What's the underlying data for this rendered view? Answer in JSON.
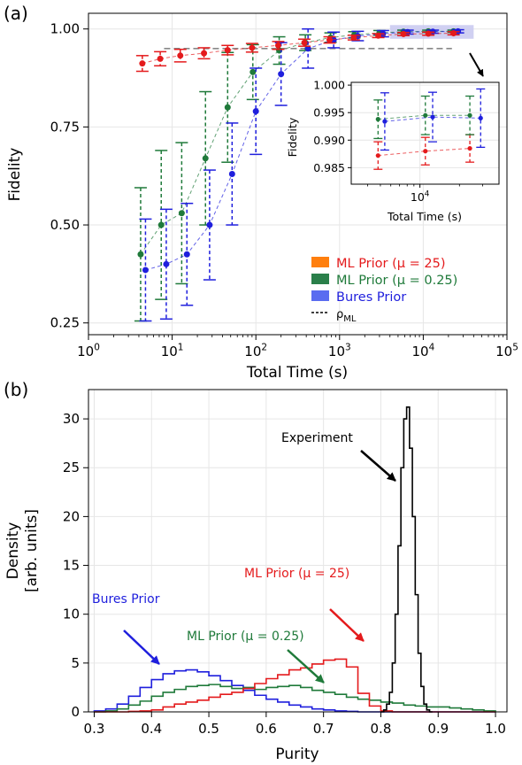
{
  "colors": {
    "ml25": "#e41a1c",
    "ml025": "#1f7a3a",
    "bures": "#1f1fdd",
    "experiment": "#000000",
    "ml25_legend": "#ff7f0e",
    "ml025_legend": "#2a7f4a",
    "bures_legend": "#5a6cf0",
    "ref_line": "#888888",
    "highlight": "#c8c8f0"
  },
  "chart_data": [
    {
      "panel_label": "(a)",
      "type": "line",
      "title": "",
      "xlabel": "Total Time (s)",
      "ylabel": "Fidelity",
      "xscale": "log",
      "xlim": [
        1,
        100000
      ],
      "ylim": [
        0.22,
        1.04
      ],
      "xticks": [
        1,
        10,
        100,
        1000,
        10000,
        100000
      ],
      "xticklabels": [
        [
          "10",
          "0"
        ],
        [
          "10",
          "1"
        ],
        [
          "10",
          "2"
        ],
        [
          "10",
          "3"
        ],
        [
          "10",
          "4"
        ],
        [
          "10",
          "5"
        ]
      ],
      "yticks": [
        0.25,
        0.5,
        0.75,
        1.0
      ],
      "yticklabels": [
        "0.25",
        "0.50",
        "0.75",
        "1.00"
      ],
      "grid": true,
      "legend_placement": "lower-right",
      "legend": [
        {
          "label": "ML Prior (μ = 25)",
          "color_key": "ml25_legend",
          "text_color_key": "ml25",
          "kind": "patch"
        },
        {
          "label": "ML Prior (μ = 0.25)",
          "color_key": "ml025_legend",
          "text_color_key": "ml025",
          "kind": "patch"
        },
        {
          "label": "Bures Prior",
          "color_key": "bures_legend",
          "text_color_key": "bures",
          "kind": "patch"
        },
        {
          "label": "ρ",
          "sub": "ML",
          "color_key": "experiment",
          "text_color_key": "experiment",
          "kind": "dash"
        }
      ],
      "reference_line": {
        "y": 0.95,
        "x_from": 8,
        "x_to": 22000
      },
      "highlight_region": {
        "x": [
          4000,
          40000
        ],
        "y": [
          0.975,
          1.01
        ]
      },
      "series": [
        {
          "name": "ML Prior (μ = 25)",
          "color_key": "ml25",
          "x": [
            4.4,
            7.2,
            12.5,
            24,
            46,
            90,
            185,
            380,
            760,
            1480,
            2900,
            5800,
            11500,
            23000
          ],
          "y": [
            0.912,
            0.924,
            0.932,
            0.938,
            0.946,
            0.952,
            0.958,
            0.965,
            0.972,
            0.978,
            0.983,
            0.987,
            0.988,
            0.989
          ],
          "err": [
            0.02,
            0.018,
            0.016,
            0.014,
            0.012,
            0.011,
            0.01,
            0.009,
            0.008,
            0.006,
            0.005,
            0.004,
            0.004,
            0.004
          ]
        },
        {
          "name": "ML Prior (μ = 0.25)",
          "color_key": "ml025",
          "x": [
            4.2,
            7.4,
            13,
            25,
            46,
            92,
            190,
            390,
            780,
            1500,
            3000,
            5800,
            11500,
            23000
          ],
          "y": [
            0.425,
            0.5,
            0.53,
            0.67,
            0.8,
            0.89,
            0.945,
            0.965,
            0.978,
            0.985,
            0.99,
            0.993,
            0.994,
            0.994
          ],
          "err": [
            0.17,
            0.19,
            0.18,
            0.17,
            0.14,
            0.07,
            0.035,
            0.02,
            0.012,
            0.008,
            0.006,
            0.004,
            0.003,
            0.003
          ]
        },
        {
          "name": "Bures Prior",
          "color_key": "bures",
          "x": [
            4.8,
            8.5,
            15,
            28,
            52,
            100,
            200,
            420,
            850,
            1650,
            3300,
            6500,
            13000,
            26000
          ],
          "y": [
            0.385,
            0.4,
            0.425,
            0.5,
            0.63,
            0.79,
            0.885,
            0.95,
            0.972,
            0.982,
            0.988,
            0.992,
            0.993,
            0.994
          ],
          "err": [
            0.13,
            0.14,
            0.13,
            0.14,
            0.13,
            0.11,
            0.08,
            0.05,
            0.02,
            0.012,
            0.008,
            0.005,
            0.004,
            0.004
          ]
        }
      ],
      "inset": {
        "xlabel": "Total Time (s)",
        "ylabel": "Fidelity",
        "xscale": "log",
        "xlim": [
          3000,
          40000
        ],
        "ylim": [
          0.982,
          1.0005
        ],
        "xticks": [
          10000
        ],
        "xticklabels": [
          [
            "10",
            "4"
          ]
        ],
        "yticks": [
          0.985,
          0.99,
          0.995,
          1.0
        ],
        "yticklabels": [
          "0.985",
          "0.990",
          "0.995",
          "1.000"
        ],
        "series": [
          {
            "name": "ML Prior (μ = 25)",
            "color_key": "ml25",
            "x": [
              4800,
              11000,
              24000
            ],
            "y": [
              0.9872,
              0.988,
              0.9885
            ],
            "err": [
              0.0025,
              0.0025,
              0.0025
            ]
          },
          {
            "name": "ML Prior (μ = 0.25)",
            "color_key": "ml025",
            "x": [
              4800,
              11000,
              24000
            ],
            "y": [
              0.9938,
              0.9945,
              0.9945
            ],
            "err": [
              0.0035,
              0.0035,
              0.0035
            ]
          },
          {
            "name": "Bures Prior",
            "color_key": "bures",
            "x": [
              5400,
              12500,
              29000
            ],
            "y": [
              0.9934,
              0.9942,
              0.994
            ],
            "err": [
              0.0052,
              0.0045,
              0.0053
            ]
          }
        ]
      }
    },
    {
      "panel_label": "(b)",
      "type": "histogram",
      "title": "",
      "xlabel": "Purity",
      "ylabel": "Density",
      "ylabel2": "[arb. units]",
      "xlim": [
        0.29,
        1.02
      ],
      "ylim": [
        0,
        33
      ],
      "xticks": [
        0.3,
        0.4,
        0.5,
        0.6,
        0.7,
        0.8,
        0.9,
        1.0
      ],
      "xticklabels": [
        "0.3",
        "0.4",
        "0.5",
        "0.6",
        "0.7",
        "0.8",
        "0.9",
        "1.0"
      ],
      "yticks": [
        0,
        5,
        10,
        15,
        20,
        25,
        30
      ],
      "yticklabels": [
        "0",
        "5",
        "10",
        "15",
        "20",
        "25",
        "30"
      ],
      "grid": true,
      "series": [
        {
          "name": "Bures Prior",
          "color_key": "bures",
          "bins_start": 0.3,
          "bin_width": 0.02,
          "values": [
            0.1,
            0.3,
            0.8,
            1.6,
            2.5,
            3.3,
            3.9,
            4.2,
            4.3,
            4.1,
            3.7,
            3.2,
            2.7,
            2.2,
            1.7,
            1.3,
            1.0,
            0.7,
            0.5,
            0.3,
            0.2,
            0.1,
            0.05,
            0.0,
            0.0,
            0.0,
            0.0,
            0.0,
            0.0,
            0.0,
            0.0,
            0.0,
            0.0,
            0.0,
            0.0
          ]
        },
        {
          "name": "ML Prior (μ = 0.25)",
          "color_key": "ml025",
          "bins_start": 0.3,
          "bin_width": 0.02,
          "values": [
            0.0,
            0.1,
            0.3,
            0.7,
            1.1,
            1.6,
            2.0,
            2.3,
            2.6,
            2.7,
            2.8,
            2.6,
            2.4,
            2.5,
            2.3,
            2.5,
            2.6,
            2.7,
            2.5,
            2.2,
            2.0,
            1.8,
            1.5,
            1.3,
            1.2,
            1.0,
            0.9,
            0.7,
            0.6,
            0.5,
            0.5,
            0.4,
            0.3,
            0.2,
            0.1
          ]
        },
        {
          "name": "ML Prior (μ = 25)",
          "color_key": "ml25",
          "bins_start": 0.3,
          "bin_width": 0.02,
          "values": [
            0.0,
            0.0,
            0.0,
            0.05,
            0.1,
            0.2,
            0.5,
            0.8,
            1.0,
            1.2,
            1.5,
            1.8,
            2.0,
            2.4,
            2.9,
            3.4,
            3.8,
            4.3,
            4.5,
            4.9,
            5.3,
            5.4,
            4.6,
            1.9,
            0.6,
            0.1,
            0.0,
            0.0,
            0.0,
            0.0,
            0.0,
            0.0,
            0.0,
            0.0,
            0.0
          ]
        },
        {
          "name": "Experiment",
          "color_key": "experiment",
          "bins_start": 0.8,
          "bin_width": 0.005,
          "values": [
            0.0,
            0.2,
            0.8,
            2.0,
            5.0,
            10.0,
            17.0,
            25.0,
            30.0,
            31.2,
            27.0,
            20.0,
            12.0,
            6.0,
            2.6,
            0.8,
            0.2,
            0.0
          ]
        }
      ],
      "annotations": [
        {
          "text": "Experiment",
          "color_key": "experiment"
        },
        {
          "text": "ML Prior (μ = 25)",
          "color_key": "ml25"
        },
        {
          "text": "Bures Prior",
          "color_key": "bures"
        },
        {
          "text": "ML Prior (μ = 0.25)",
          "color_key": "ml025"
        }
      ]
    }
  ]
}
